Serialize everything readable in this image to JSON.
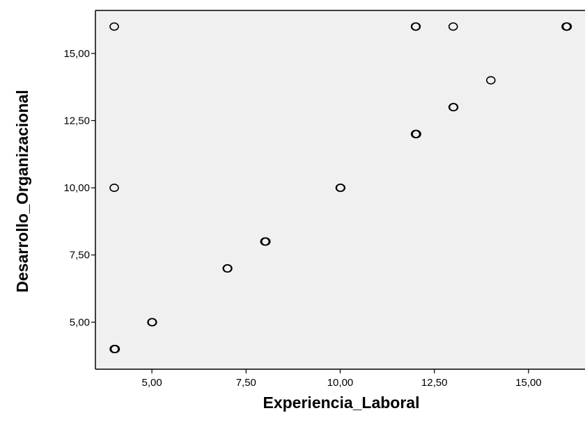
{
  "chart_data": {
    "type": "scatter",
    "title": "",
    "xlabel": "Experiencia_Laboral",
    "ylabel": "Desarrollo_Organizacional",
    "xlim": [
      3.5,
      16.5
    ],
    "ylim": [
      3.25,
      16.6
    ],
    "x_ticks": [
      5,
      7.5,
      10,
      12.5,
      15
    ],
    "x_tick_labels": [
      "5,00",
      "7,50",
      "10,00",
      "12,50",
      "15,00"
    ],
    "y_ticks": [
      5,
      7.5,
      10,
      12.5,
      15
    ],
    "y_tick_labels": [
      "5,00",
      "7,50",
      "10,00",
      "12,50",
      "15,00"
    ],
    "grid": false,
    "background_color": "#f0f0f0",
    "marker_color": "#000000",
    "points": [
      {
        "x": 4,
        "y": 16,
        "count": 1
      },
      {
        "x": 4,
        "y": 10,
        "count": 1
      },
      {
        "x": 4,
        "y": 4,
        "count": 3
      },
      {
        "x": 5,
        "y": 5,
        "count": 2
      },
      {
        "x": 7,
        "y": 7,
        "count": 2
      },
      {
        "x": 8,
        "y": 8,
        "count": 3
      },
      {
        "x": 10,
        "y": 10,
        "count": 2
      },
      {
        "x": 12,
        "y": 16,
        "count": 2
      },
      {
        "x": 12,
        "y": 12,
        "count": 3
      },
      {
        "x": 13,
        "y": 16,
        "count": 1
      },
      {
        "x": 13,
        "y": 13,
        "count": 2
      },
      {
        "x": 14,
        "y": 14,
        "count": 1
      },
      {
        "x": 16,
        "y": 16,
        "count": 3
      }
    ]
  }
}
